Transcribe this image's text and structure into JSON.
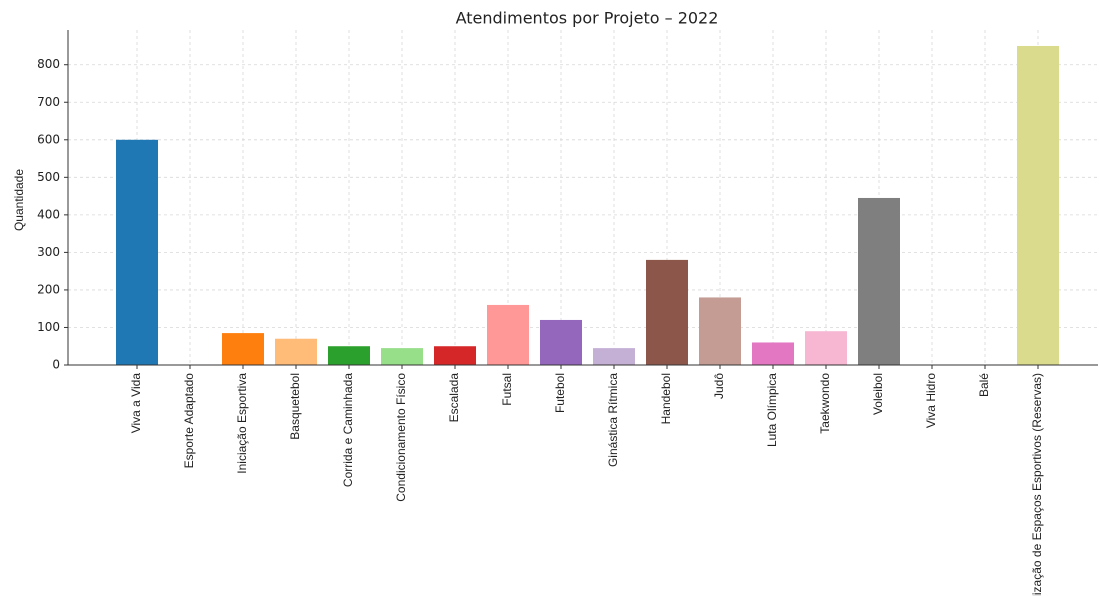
{
  "chart_data": {
    "type": "bar",
    "title": "Atendimentos por Projeto – 2022",
    "ylabel": "Quantidade",
    "categories": [
      "Viva a Vida",
      "Esporte Adaptado",
      "Iniciação Esportiva",
      "Basquetebol",
      "Corrida e Caminhada",
      "Condicionamento Físico",
      "Escalada",
      "Futsal",
      "Futebol",
      "Ginástica Rítmica",
      "Handebol",
      "Judô",
      "Luta Olímpica",
      "Taekwondo",
      "Voleibol",
      "Viva Hidro",
      "Balé",
      "Utilização de Espaços Esportivos (Reservas)"
    ],
    "values": [
      600,
      0,
      85,
      70,
      50,
      45,
      50,
      160,
      120,
      45,
      280,
      180,
      60,
      90,
      445,
      0,
      0,
      850
    ],
    "colors": [
      "#1f77b4",
      "#aec7e8",
      "#ff7f0e",
      "#ffbb78",
      "#2ca02c",
      "#98df8a",
      "#d62728",
      "#ff9896",
      "#9467bd",
      "#c5b0d5",
      "#8c564b",
      "#c49c94",
      "#e377c2",
      "#f7b6d2",
      "#7f7f7f",
      "#c7c7c7",
      "#bcbd22",
      "#dbdb8d"
    ],
    "ylim": [
      0,
      892.5
    ],
    "yticks": [
      0,
      100,
      200,
      300,
      400,
      500,
      600,
      700,
      800
    ],
    "grid": true
  }
}
